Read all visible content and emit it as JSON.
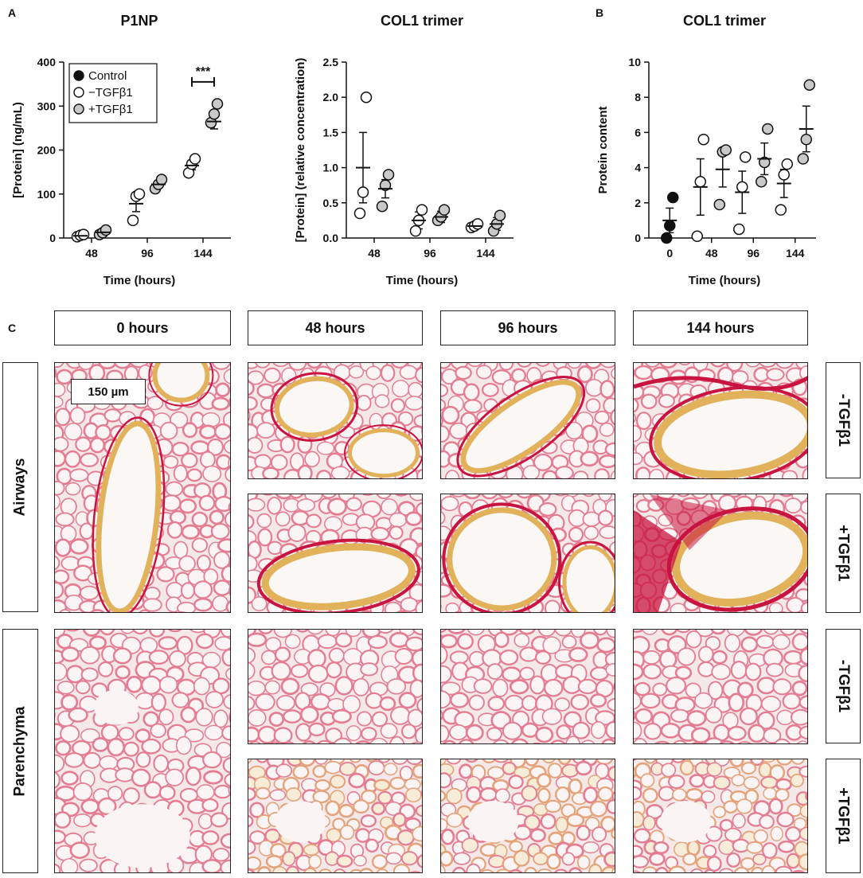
{
  "panel_labels": {
    "a": "A",
    "b": "B",
    "c": "C"
  },
  "chart_data": [
    {
      "type": "scatter",
      "title": "P1NP",
      "xlabel": "Time (hours)",
      "ylabel": "[Protein] (ng/mL)",
      "ylim": [
        0,
        400
      ],
      "yticks": [
        0,
        100,
        200,
        300,
        400
      ],
      "categories": [
        "48",
        "96",
        "144"
      ],
      "legend": [
        "Control",
        "−TGFβ1",
        "+TGFβ1"
      ],
      "legend_position": "top-left",
      "annotation": "***",
      "series": [
        {
          "name": "−TGFβ1",
          "points": [
            [
              3,
              6,
              8
            ],
            [
              40,
              95,
              100
            ],
            [
              148,
              168,
              180
            ]
          ],
          "mean": [
            5,
            78,
            165
          ],
          "sem": [
            2,
            18,
            10
          ]
        },
        {
          "name": "+TGFβ1",
          "points": [
            [
              8,
              12,
              18
            ],
            [
              112,
              122,
              133
            ],
            [
              262,
              282,
              305
            ]
          ],
          "mean": [
            13,
            122,
            265
          ],
          "sem": [
            4,
            7,
            17
          ]
        }
      ]
    },
    {
      "type": "scatter",
      "title": "COL1 trimer",
      "xlabel": "Time (hours)",
      "ylabel": "[Protein] (relative concentration)",
      "ylim": [
        0,
        2.5
      ],
      "yticks": [
        "0.0",
        "0.5",
        "1.0",
        "1.5",
        "2.0",
        "2.5"
      ],
      "categories": [
        "48",
        "96",
        "144"
      ],
      "series": [
        {
          "name": "−TGFβ1",
          "points": [
            [
              0.35,
              0.65,
              2.0
            ],
            [
              0.1,
              0.25,
              0.4
            ],
            [
              0.15,
              0.17,
              0.2
            ]
          ],
          "mean": [
            1.0,
            0.25,
            0.17
          ],
          "sem": [
            0.5,
            0.12,
            0.03
          ]
        },
        {
          "name": "+TGFβ1",
          "points": [
            [
              0.45,
              0.75,
              0.9
            ],
            [
              0.25,
              0.3,
              0.4
            ],
            [
              0.1,
              0.2,
              0.32
            ]
          ],
          "mean": [
            0.7,
            0.3,
            0.2
          ],
          "sem": [
            0.13,
            0.08,
            0.09
          ]
        }
      ]
    },
    {
      "type": "scatter",
      "title": "COL1 trimer",
      "xlabel": "Time (hours)",
      "ylabel": "Protein content",
      "ylim": [
        0,
        10
      ],
      "yticks": [
        0,
        2,
        4,
        6,
        8,
        10
      ],
      "categories": [
        "0",
        "48",
        "96",
        "144"
      ],
      "series": [
        {
          "name": "Control",
          "points": [
            [
              0.0,
              0.7,
              2.3
            ]
          ],
          "mean": [
            1.0
          ],
          "sem": [
            0.7
          ]
        },
        {
          "name": "−TGFβ1",
          "points": [
            [
              0.1,
              3.2,
              5.6
            ],
            [
              0.5,
              2.9,
              4.6
            ],
            [
              1.6,
              3.6,
              4.2
            ]
          ],
          "mean": [
            2.9,
            2.6,
            3.1
          ],
          "sem": [
            1.6,
            1.2,
            0.8
          ]
        },
        {
          "name": "+TGFβ1",
          "points": [
            [
              1.9,
              4.9,
              5.0
            ],
            [
              3.2,
              4.3,
              6.2
            ],
            [
              4.5,
              5.6,
              8.7
            ]
          ],
          "mean": [
            3.9,
            4.5,
            6.2
          ],
          "sem": [
            1.0,
            0.9,
            1.3
          ]
        }
      ]
    }
  ],
  "micrographs": {
    "time_headers": [
      "0 hours",
      "48 hours",
      "96 hours",
      "144 hours"
    ],
    "row_labels": {
      "airways": "Airways",
      "parenchyma": "Parenchyma"
    },
    "condition_labels": {
      "minus": "-TGFβ1",
      "plus": "+TGFβ1"
    },
    "scale_bar": "150 µm",
    "stain_colors": {
      "background": "#f4e8e8",
      "septa": "#e47d92",
      "collagen": "#c8143e",
      "epithelium": "#e2b25a"
    }
  }
}
